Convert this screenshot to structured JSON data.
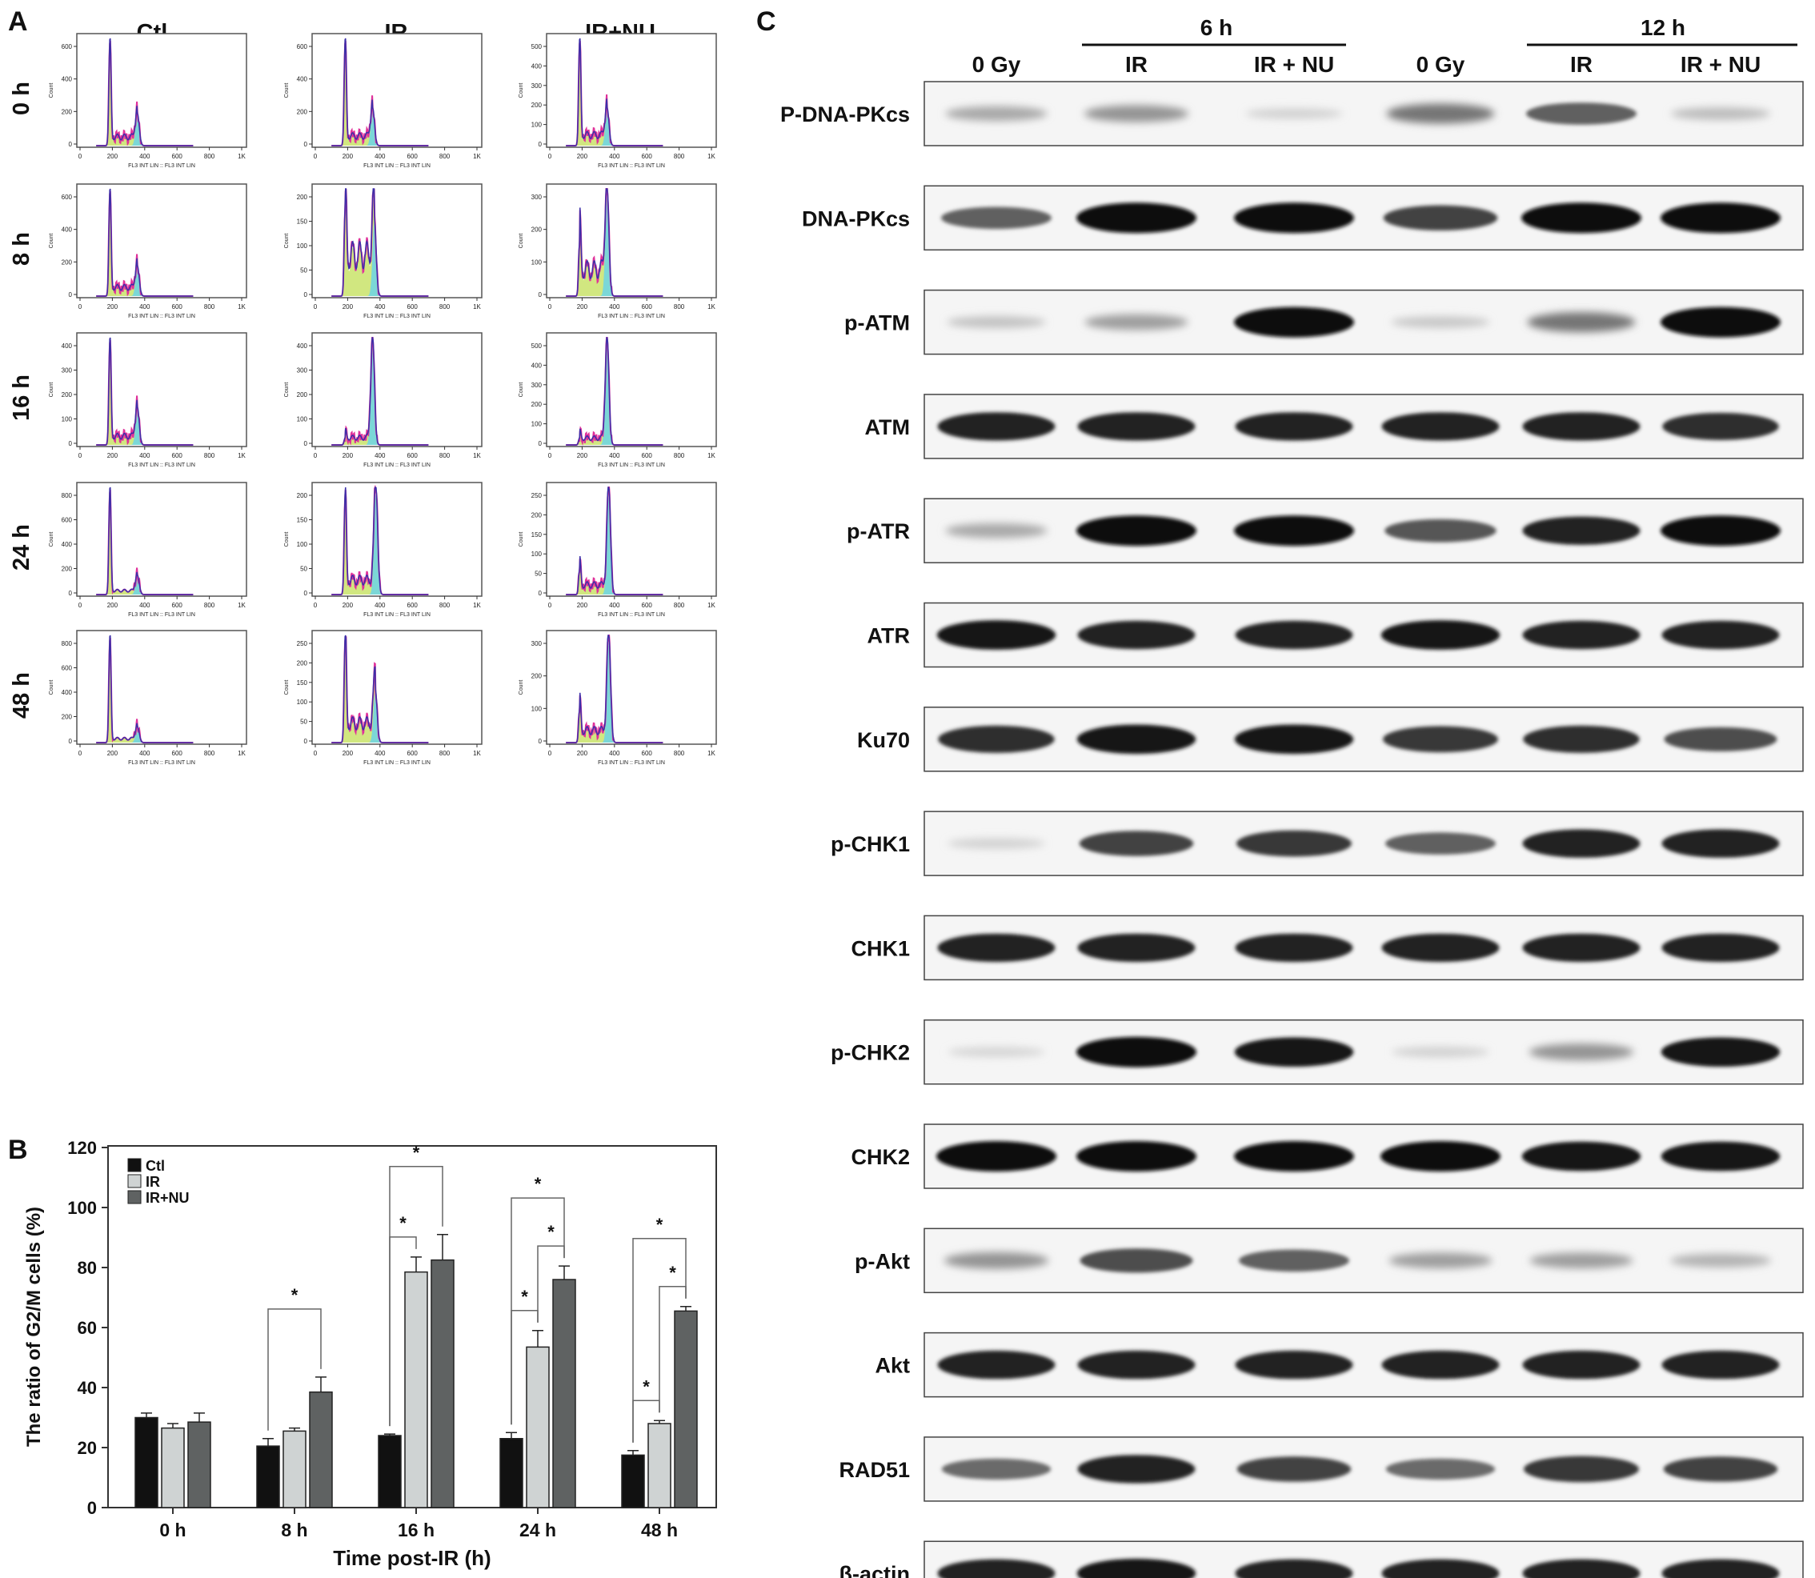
{
  "panel_letters": {
    "a": "A",
    "b": "B",
    "c": "C"
  },
  "panel_a": {
    "columns": [
      "Ctl",
      "IR",
      "IR+NU"
    ],
    "rows": [
      "0 h",
      "8 h",
      "16 h",
      "24 h",
      "48 h"
    ],
    "x_axis_label": "FL3 INT LIN :: FL3 INT LIN",
    "y_axis_label": "Count",
    "x_ticks": [
      "0",
      "200",
      "400",
      "600",
      "800",
      "1K"
    ],
    "y_ticks": [
      [
        [
          "0",
          "200",
          "400",
          "600"
        ],
        [
          "0",
          "200",
          "400",
          "600"
        ],
        [
          "0",
          "100",
          "200",
          "300",
          "400",
          "500"
        ]
      ],
      [
        [
          "0",
          "200",
          "400",
          "600"
        ],
        [
          "0",
          "50",
          "100",
          "150",
          "200"
        ],
        [
          "0",
          "100",
          "200",
          "300"
        ]
      ],
      [
        [
          "0",
          "100",
          "200",
          "300",
          "400"
        ],
        [
          "0",
          "100",
          "200",
          "300",
          "400"
        ],
        [
          "0",
          "100",
          "200",
          "300",
          "400",
          "500"
        ]
      ],
      [
        [
          "0",
          "200",
          "400",
          "600",
          "800"
        ],
        [
          "0",
          "50",
          "100",
          "150",
          "200"
        ],
        [
          "0",
          "50",
          "100",
          "150",
          "200",
          "250"
        ]
      ],
      [
        [
          "0",
          "200",
          "400",
          "600",
          "800"
        ],
        [
          "0",
          "50",
          "100",
          "150",
          "200",
          "250"
        ],
        [
          "0",
          "100",
          "200",
          "300"
        ]
      ]
    ]
  },
  "chart_data": {
    "type": "bar",
    "title": "",
    "xlabel": "Time post-IR (h)",
    "ylabel": "The ratio of G2/M cells (%)",
    "categories": [
      "0 h",
      "8 h",
      "16 h",
      "24 h",
      "48 h"
    ],
    "ylim": [
      0,
      120
    ],
    "yticks": [
      "0",
      "20",
      "40",
      "60",
      "80",
      "100",
      "120"
    ],
    "legend_position": "top-left",
    "series": [
      {
        "name": "Ctl",
        "color": "#111111",
        "values": [
          30,
          20.5,
          24,
          23,
          17.5
        ],
        "errors": [
          1.5,
          2.5,
          0.5,
          2,
          1.5
        ]
      },
      {
        "name": "IR",
        "color": "#cfd3d3",
        "values": [
          26.5,
          25.5,
          78.5,
          53.5,
          28
        ],
        "errors": [
          1.5,
          1,
          5,
          5.5,
          1
        ]
      },
      {
        "name": "IR+NU",
        "color": "#5f6262",
        "values": [
          28.5,
          38.5,
          82.5,
          76,
          65.5
        ],
        "errors": [
          3,
          5,
          8.5,
          4.5,
          1.5
        ]
      }
    ],
    "significance_marks": [
      {
        "category": "8 h",
        "from": "Ctl",
        "to": "IR+NU",
        "label": "*"
      },
      {
        "category": "16 h",
        "from": "Ctl",
        "to": "IR",
        "label": "*"
      },
      {
        "category": "16 h",
        "from": "Ctl",
        "to": "IR+NU",
        "label": "*"
      },
      {
        "category": "24 h",
        "from": "Ctl",
        "to": "IR",
        "label": "*"
      },
      {
        "category": "24 h",
        "from": "IR",
        "to": "IR+NU",
        "label": "*"
      },
      {
        "category": "24 h",
        "from": "Ctl",
        "to": "IR+NU",
        "label": "*"
      },
      {
        "category": "48 h",
        "from": "Ctl",
        "to": "IR",
        "label": "*"
      },
      {
        "category": "48 h",
        "from": "IR",
        "to": "IR+NU",
        "label": "*"
      },
      {
        "category": "48 h",
        "from": "Ctl",
        "to": "IR+NU",
        "label": "*"
      }
    ]
  },
  "panel_c": {
    "time_groups": [
      "6 h",
      "12 h"
    ],
    "lanes": [
      "0 Gy",
      "IR",
      "IR + NU",
      "0 Gy",
      "IR",
      "IR + NU"
    ],
    "proteins": [
      "P-DNA-PKcs",
      "DNA-PKcs",
      "p-ATM",
      "ATM",
      "p-ATR",
      "ATR",
      "Ku70",
      "p-CHK1",
      "CHK1",
      "p-CHK2",
      "CHK2",
      "p-Akt",
      "Akt",
      "RAD51",
      "β-actin"
    ],
    "band_intensity": [
      [
        0.25,
        0.35,
        0.05,
        0.5,
        0.6,
        0.15
      ],
      [
        0.6,
        1.0,
        1.0,
        0.75,
        1.0,
        1.0
      ],
      [
        0.12,
        0.3,
        1.0,
        0.1,
        0.5,
        1.0
      ],
      [
        0.9,
        0.9,
        0.9,
        0.9,
        0.9,
        0.85
      ],
      [
        0.25,
        1.0,
        1.0,
        0.65,
        0.9,
        1.0
      ],
      [
        0.95,
        0.9,
        0.9,
        0.95,
        0.9,
        0.9
      ],
      [
        0.85,
        0.95,
        0.95,
        0.8,
        0.85,
        0.7
      ],
      [
        0.05,
        0.75,
        0.8,
        0.6,
        0.9,
        0.9
      ],
      [
        0.9,
        0.9,
        0.9,
        0.9,
        0.9,
        0.9
      ],
      [
        0.03,
        1.0,
        0.95,
        0.05,
        0.35,
        0.95
      ],
      [
        1.0,
        1.0,
        1.0,
        1.0,
        0.95,
        0.95
      ],
      [
        0.35,
        0.7,
        0.6,
        0.3,
        0.3,
        0.2
      ],
      [
        0.9,
        0.9,
        0.9,
        0.9,
        0.9,
        0.9
      ],
      [
        0.55,
        0.9,
        0.75,
        0.55,
        0.8,
        0.75
      ],
      [
        0.9,
        0.95,
        0.9,
        0.9,
        0.9,
        0.9
      ]
    ]
  }
}
